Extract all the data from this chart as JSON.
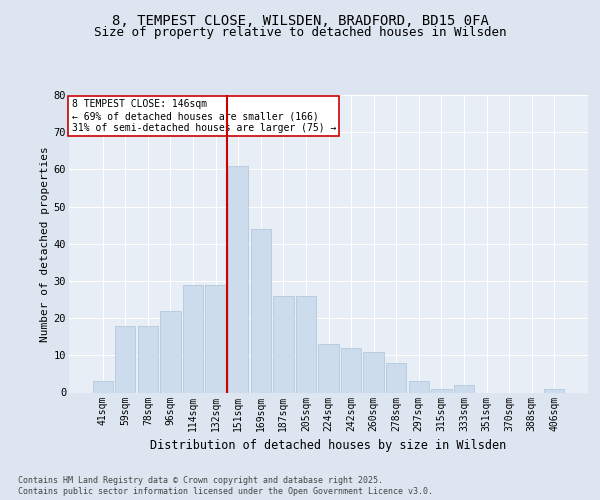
{
  "title_line1": "8, TEMPEST CLOSE, WILSDEN, BRADFORD, BD15 0FA",
  "title_line2": "Size of property relative to detached houses in Wilsden",
  "xlabel": "Distribution of detached houses by size in Wilsden",
  "ylabel": "Number of detached properties",
  "categories": [
    "41sqm",
    "59sqm",
    "78sqm",
    "96sqm",
    "114sqm",
    "132sqm",
    "151sqm",
    "169sqm",
    "187sqm",
    "205sqm",
    "224sqm",
    "242sqm",
    "260sqm",
    "278sqm",
    "297sqm",
    "315sqm",
    "333sqm",
    "351sqm",
    "370sqm",
    "388sqm",
    "406sqm"
  ],
  "values": [
    3,
    18,
    18,
    22,
    29,
    29,
    61,
    44,
    26,
    26,
    13,
    12,
    11,
    8,
    3,
    1,
    2,
    0,
    0,
    0,
    1
  ],
  "bar_color": "#ccdcec",
  "bar_edge_color": "#adc4d8",
  "red_line_color": "#cc0000",
  "red_line_index": 6,
  "annotation_title": "8 TEMPEST CLOSE: 146sqm",
  "annotation_line2": "← 69% of detached houses are smaller (166)",
  "annotation_line3": "31% of semi-detached houses are larger (75) →",
  "annotation_box_facecolor": "#ffffff",
  "annotation_box_edgecolor": "#cc0000",
  "ylim": [
    0,
    80
  ],
  "yticks": [
    0,
    10,
    20,
    30,
    40,
    50,
    60,
    70,
    80
  ],
  "bg_color": "#dde6f0",
  "plot_bg_color": "#e8eef5",
  "grid_color": "#ffffff",
  "footer_line1": "Contains HM Land Registry data © Crown copyright and database right 2025.",
  "footer_line2": "Contains public sector information licensed under the Open Government Licence v3.0.",
  "title_fontsize": 10,
  "subtitle_fontsize": 9,
  "ylabel_fontsize": 8,
  "xlabel_fontsize": 8.5,
  "tick_fontsize": 7,
  "annot_fontsize": 7,
  "footer_fontsize": 6
}
